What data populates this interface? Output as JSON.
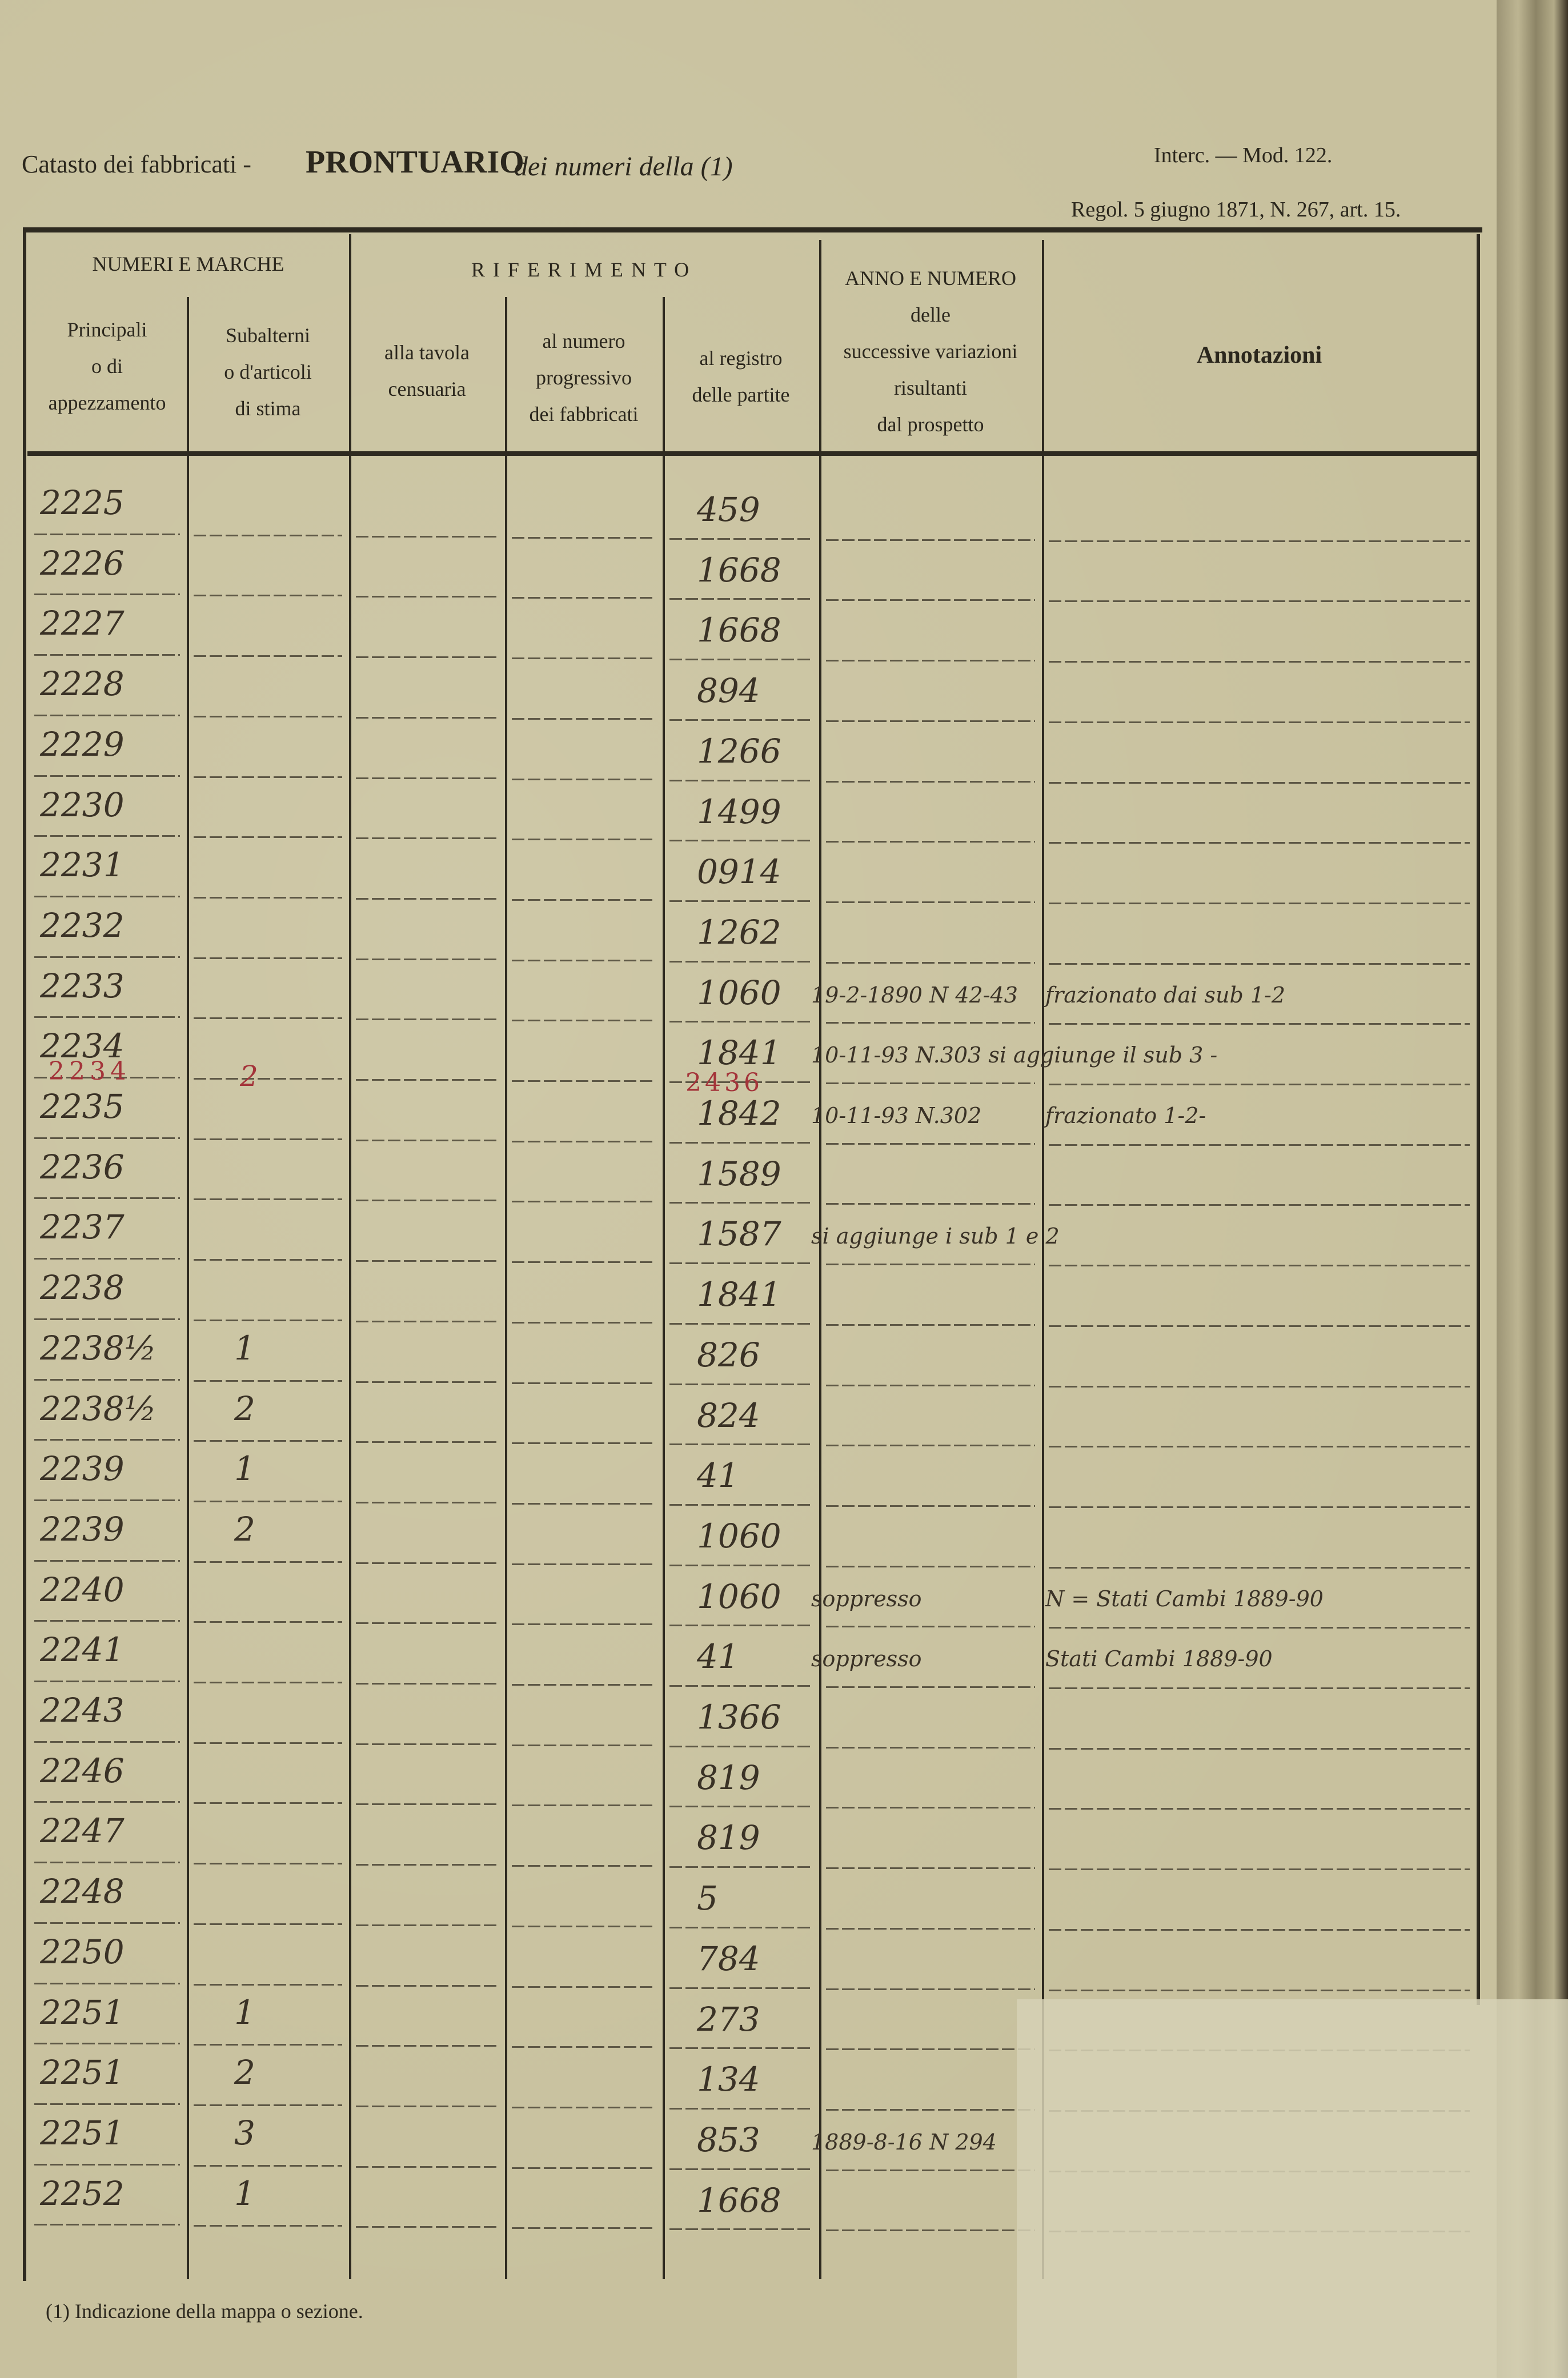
{
  "header": {
    "title_prefix": "Catasto dei fabbricati -",
    "title_main": "PRONTUARIO",
    "title_suffix": "dei numeri della (1)",
    "model": "Interc. — Mod. 122.",
    "regulation": "Regol. 5 giugno 1871, N. 267, art. 15."
  },
  "columns": {
    "group_numbers": "NUMERI E MARCHE",
    "group_reference": "RIFERIMENTO",
    "principali": [
      "Principali",
      "o di",
      "appezzamento"
    ],
    "subalterni": [
      "Subalterni",
      "o d'articoli",
      "di stima"
    ],
    "tavola": [
      "alla tavola",
      "censuaria"
    ],
    "progressivo": [
      "al numero",
      "progressivo",
      "dei fabbricati"
    ],
    "registro": [
      "al registro",
      "delle partite"
    ],
    "variazioni": [
      "ANNO E NUMERO",
      "delle",
      "successive variazioni",
      "risultanti",
      "dal prospetto"
    ],
    "annotazioni": "Annotazioni"
  },
  "rows": [
    {
      "principale": "2225",
      "sub": "",
      "registro": "459",
      "variazione": "",
      "annotazione": ""
    },
    {
      "principale": "2226",
      "sub": "",
      "registro": "1668",
      "variazione": "",
      "annotazione": ""
    },
    {
      "principale": "2227",
      "sub": "",
      "registro": "1668",
      "variazione": "",
      "annotazione": ""
    },
    {
      "principale": "2228",
      "sub": "",
      "registro": "894",
      "variazione": "",
      "annotazione": ""
    },
    {
      "principale": "2229",
      "sub": "",
      "registro": "1266",
      "variazione": "",
      "annotazione": ""
    },
    {
      "principale": "2230",
      "sub": "",
      "registro": "1499",
      "variazione": "",
      "annotazione": ""
    },
    {
      "principale": "2231",
      "sub": "",
      "registro": "0914",
      "variazione": "",
      "annotazione": ""
    },
    {
      "principale": "2232",
      "sub": "",
      "registro": "1262",
      "variazione": "",
      "annotazione": ""
    },
    {
      "principale": "2233",
      "sub": "",
      "registro": "1060",
      "variazione": "19-2-1890 N 42-43",
      "annotazione": "frazionato dai sub 1-2"
    },
    {
      "principale": "2234",
      "sub": "",
      "registro": "1841",
      "variazione": "10-11-93 N.303 si aggiunge il sub 3 -",
      "annotazione": ""
    },
    {
      "principale": "2235",
      "sub": "",
      "registro": "1842",
      "variazione": "10-11-93 N.302",
      "annotazione": "frazionato 1-2-"
    },
    {
      "principale": "2236",
      "sub": "",
      "registro": "1589",
      "variazione": "",
      "annotazione": ""
    },
    {
      "principale": "2237",
      "sub": "",
      "registro": "1587",
      "variazione": "si aggiunge i sub 1 e 2",
      "annotazione": ""
    },
    {
      "principale": "2238",
      "sub": "",
      "registro": "1841",
      "variazione": "",
      "annotazione": ""
    },
    {
      "principale": "2238½",
      "sub": "1",
      "registro": "826",
      "variazione": "",
      "annotazione": ""
    },
    {
      "principale": "2238½",
      "sub": "2",
      "registro": "824",
      "variazione": "",
      "annotazione": ""
    },
    {
      "principale": "2239",
      "sub": "1",
      "registro": "41",
      "variazione": "",
      "annotazione": ""
    },
    {
      "principale": "2239",
      "sub": "2",
      "registro": "1060",
      "variazione": "",
      "annotazione": ""
    },
    {
      "principale": "2240",
      "sub": "",
      "registro": "1060",
      "variazione": "soppresso",
      "annotazione": "N = Stati Cambi 1889-90"
    },
    {
      "principale": "2241",
      "sub": "",
      "registro": "41",
      "variazione": "soppresso",
      "annotazione": "Stati Cambi 1889-90"
    },
    {
      "principale": "2243",
      "sub": "",
      "registro": "1366",
      "variazione": "",
      "annotazione": ""
    },
    {
      "principale": "2246",
      "sub": "",
      "registro": "819",
      "variazione": "",
      "annotazione": ""
    },
    {
      "principale": "2247",
      "sub": "",
      "registro": "819",
      "variazione": "",
      "annotazione": ""
    },
    {
      "principale": "2248",
      "sub": "",
      "registro": "5",
      "variazione": "",
      "annotazione": ""
    },
    {
      "principale": "2250",
      "sub": "",
      "registro": "784",
      "variazione": "",
      "annotazione": ""
    },
    {
      "principale": "2251",
      "sub": "1",
      "registro": "273",
      "variazione": "",
      "annotazione": ""
    },
    {
      "principale": "2251",
      "sub": "2",
      "registro": "134",
      "variazione": "",
      "annotazione": ""
    },
    {
      "principale": "2251",
      "sub": "3",
      "registro": "853",
      "variazione": "1889-8-16 N 294",
      "annotazione": ""
    },
    {
      "principale": "2252",
      "sub": "1",
      "registro": "1668",
      "variazione": "",
      "annotazione": ""
    }
  ],
  "red_insert": {
    "principale": "2234",
    "sub": "2",
    "registro": "2436",
    "color": "#a4343a"
  },
  "footer": {
    "note": "(1) Indicazione della mappa o sezione."
  },
  "colors": {
    "paper": "#c8c19e",
    "ink": "#2b271d",
    "red_ink": "#a4343a"
  }
}
